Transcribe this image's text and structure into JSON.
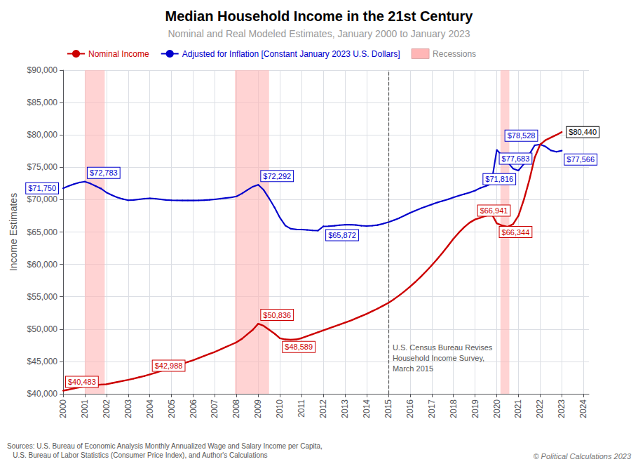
{
  "chart_data": {
    "type": "line",
    "title": "Median Household Income in the 21st Century",
    "subtitle": "Nominal and Real Modeled Estimates, January 2000 to January 2023",
    "y_label": "Income Estimates",
    "x": [
      2000.0,
      2000.25,
      2000.5,
      2000.75,
      2001.0,
      2001.25,
      2001.5,
      2001.75,
      2002.0,
      2002.25,
      2002.5,
      2002.75,
      2003.0,
      2003.25,
      2003.5,
      2003.75,
      2004.0,
      2004.25,
      2004.5,
      2004.75,
      2005.0,
      2005.25,
      2005.5,
      2005.75,
      2006.0,
      2006.25,
      2006.5,
      2006.75,
      2007.0,
      2007.25,
      2007.5,
      2007.75,
      2008.0,
      2008.25,
      2008.5,
      2008.75,
      2009.0,
      2009.25,
      2009.5,
      2009.75,
      2010.0,
      2010.25,
      2010.5,
      2010.75,
      2011.0,
      2011.25,
      2011.5,
      2011.75,
      2012.0,
      2012.25,
      2012.5,
      2012.75,
      2013.0,
      2013.25,
      2013.5,
      2013.75,
      2014.0,
      2014.25,
      2014.5,
      2014.75,
      2015.0,
      2015.25,
      2015.5,
      2015.75,
      2016.0,
      2016.25,
      2016.5,
      2016.75,
      2017.0,
      2017.25,
      2017.5,
      2017.75,
      2018.0,
      2018.25,
      2018.5,
      2018.75,
      2019.0,
      2019.25,
      2019.5,
      2019.75,
      2020.0,
      2020.25,
      2020.5,
      2020.75,
      2021.0,
      2021.25,
      2021.5,
      2021.75,
      2022.0,
      2022.25,
      2022.5,
      2022.75,
      2023.0
    ],
    "series": [
      {
        "name": "Nominal Income",
        "color": "#cc0000",
        "values": [
          40483,
          40650,
          40820,
          40990,
          41160,
          41280,
          41350,
          41420,
          41480,
          41650,
          41820,
          41990,
          42160,
          42350,
          42550,
          42750,
          42988,
          43250,
          43520,
          43800,
          44080,
          44360,
          44640,
          44920,
          45200,
          45520,
          45840,
          46160,
          46480,
          46850,
          47220,
          47590,
          47960,
          48500,
          49200,
          49900,
          50836,
          50500,
          49900,
          49300,
          48589,
          48400,
          48350,
          48400,
          48600,
          48900,
          49200,
          49500,
          49800,
          50100,
          50400,
          50700,
          51000,
          51300,
          51650,
          52000,
          52350,
          52750,
          53150,
          53600,
          54050,
          54600,
          55200,
          55850,
          56550,
          57300,
          58100,
          58950,
          59850,
          60800,
          61800,
          62850,
          63950,
          64900,
          65750,
          66450,
          66941,
          67200,
          67500,
          67900,
          66344,
          66000,
          65800,
          66200,
          67500,
          70000,
          73000,
          76500,
          78500,
          79200,
          79600,
          80000,
          80440
        ],
        "annotations": [
          {
            "x": 2000.0,
            "value": 40483,
            "label": "$40,483"
          },
          {
            "x": 2004.0,
            "value": 42988,
            "label": "$42,988"
          },
          {
            "x": 2009.0,
            "value": 50836,
            "label": "$50,836"
          },
          {
            "x": 2010.0,
            "value": 48589,
            "label": "$48,589"
          },
          {
            "x": 2019.0,
            "value": 66941,
            "label": "$66,941"
          },
          {
            "x": 2020.0,
            "value": 66344,
            "label": "$66,344"
          },
          {
            "x": 2023.0,
            "value": 80440,
            "label": "$80,440",
            "color": "#000000"
          }
        ]
      },
      {
        "name": "Adjusted for Inflation [Constant January 2023 U.S. Dollars]",
        "color": "#0000cc",
        "values": [
          71750,
          72100,
          72400,
          72650,
          72783,
          72500,
          72100,
          71700,
          71100,
          70700,
          70350,
          70100,
          69900,
          69950,
          70050,
          70150,
          70200,
          70150,
          70050,
          69950,
          69900,
          69880,
          69870,
          69870,
          69870,
          69880,
          69920,
          69980,
          70050,
          70150,
          70250,
          70350,
          70500,
          70950,
          71500,
          72000,
          72292,
          71500,
          70200,
          68800,
          67200,
          66000,
          65500,
          65400,
          65380,
          65320,
          65250,
          65210,
          65872,
          65900,
          65960,
          66050,
          66120,
          66130,
          66080,
          65970,
          65920,
          65970,
          66070,
          66280,
          66520,
          66820,
          67150,
          67550,
          67950,
          68300,
          68650,
          68950,
          69250,
          69550,
          69800,
          70050,
          70350,
          70600,
          70850,
          71100,
          71400,
          71816,
          72100,
          72450,
          77683,
          76800,
          75800,
          74800,
          74500,
          75500,
          77000,
          78400,
          78528,
          78200,
          77600,
          77400,
          77566
        ],
        "annotations": [
          {
            "x": 2000.0,
            "value": 71750,
            "label": "$71,750"
          },
          {
            "x": 2001.0,
            "value": 72783,
            "label": "$72,783"
          },
          {
            "x": 2009.0,
            "value": 72292,
            "label": "$72,292"
          },
          {
            "x": 2012.0,
            "value": 65872,
            "label": "$65,872"
          },
          {
            "x": 2019.25,
            "value": 71816,
            "label": "$71,816"
          },
          {
            "x": 2020.0,
            "value": 77683,
            "label": "$77,683"
          },
          {
            "x": 2022.0,
            "value": 78528,
            "label": "$78,528"
          },
          {
            "x": 2023.0,
            "value": 77566,
            "label": "$77,566"
          }
        ]
      }
    ],
    "recession_bands": {
      "name": "Recessions",
      "color": "#ffb6b6",
      "ranges": [
        [
          2001.0,
          2001.92
        ],
        [
          2007.92,
          2009.5
        ],
        [
          2020.17,
          2020.58
        ]
      ]
    },
    "vline": {
      "x": 2015.0,
      "label": "U.S. Census Bureau Revises\nHousehold Income Survey,\nMarch 2015"
    },
    "sources": "Sources: U.S. Bureau of Economic Analysis Monthly Annualized Wage and Salary Income per Capita,\n   U.S. Bureau of Labor Statistics (Consumer Price Index), and Author's Calculations",
    "copyright": "© Political Calculations 2023",
    "xlim": [
      2000.0,
      2024.25
    ],
    "xticks": [
      2000,
      2001,
      2002,
      2003,
      2004,
      2005,
      2006,
      2007,
      2008,
      2009,
      2010,
      2011,
      2012,
      2013,
      2014,
      2015,
      2016,
      2017,
      2018,
      2019,
      2020,
      2021,
      2022,
      2023,
      2024
    ],
    "ylim": [
      40000,
      90000
    ],
    "yticks": [
      {
        "value": 40000,
        "label": "$40,000"
      },
      {
        "value": 45000,
        "label": "$45,000"
      },
      {
        "value": 50000,
        "label": "$50,000"
      },
      {
        "value": 55000,
        "label": "$55,000"
      },
      {
        "value": 60000,
        "label": "$60,000"
      },
      {
        "value": 65000,
        "label": "$65,000"
      },
      {
        "value": 70000,
        "label": "$70,000"
      },
      {
        "value": 75000,
        "label": "$75,000"
      },
      {
        "value": 80000,
        "label": "$80,000"
      },
      {
        "value": 85000,
        "label": "$85,000"
      },
      {
        "value": 90000,
        "label": "$90,000"
      }
    ],
    "grid": true,
    "legend": "upper left"
  }
}
